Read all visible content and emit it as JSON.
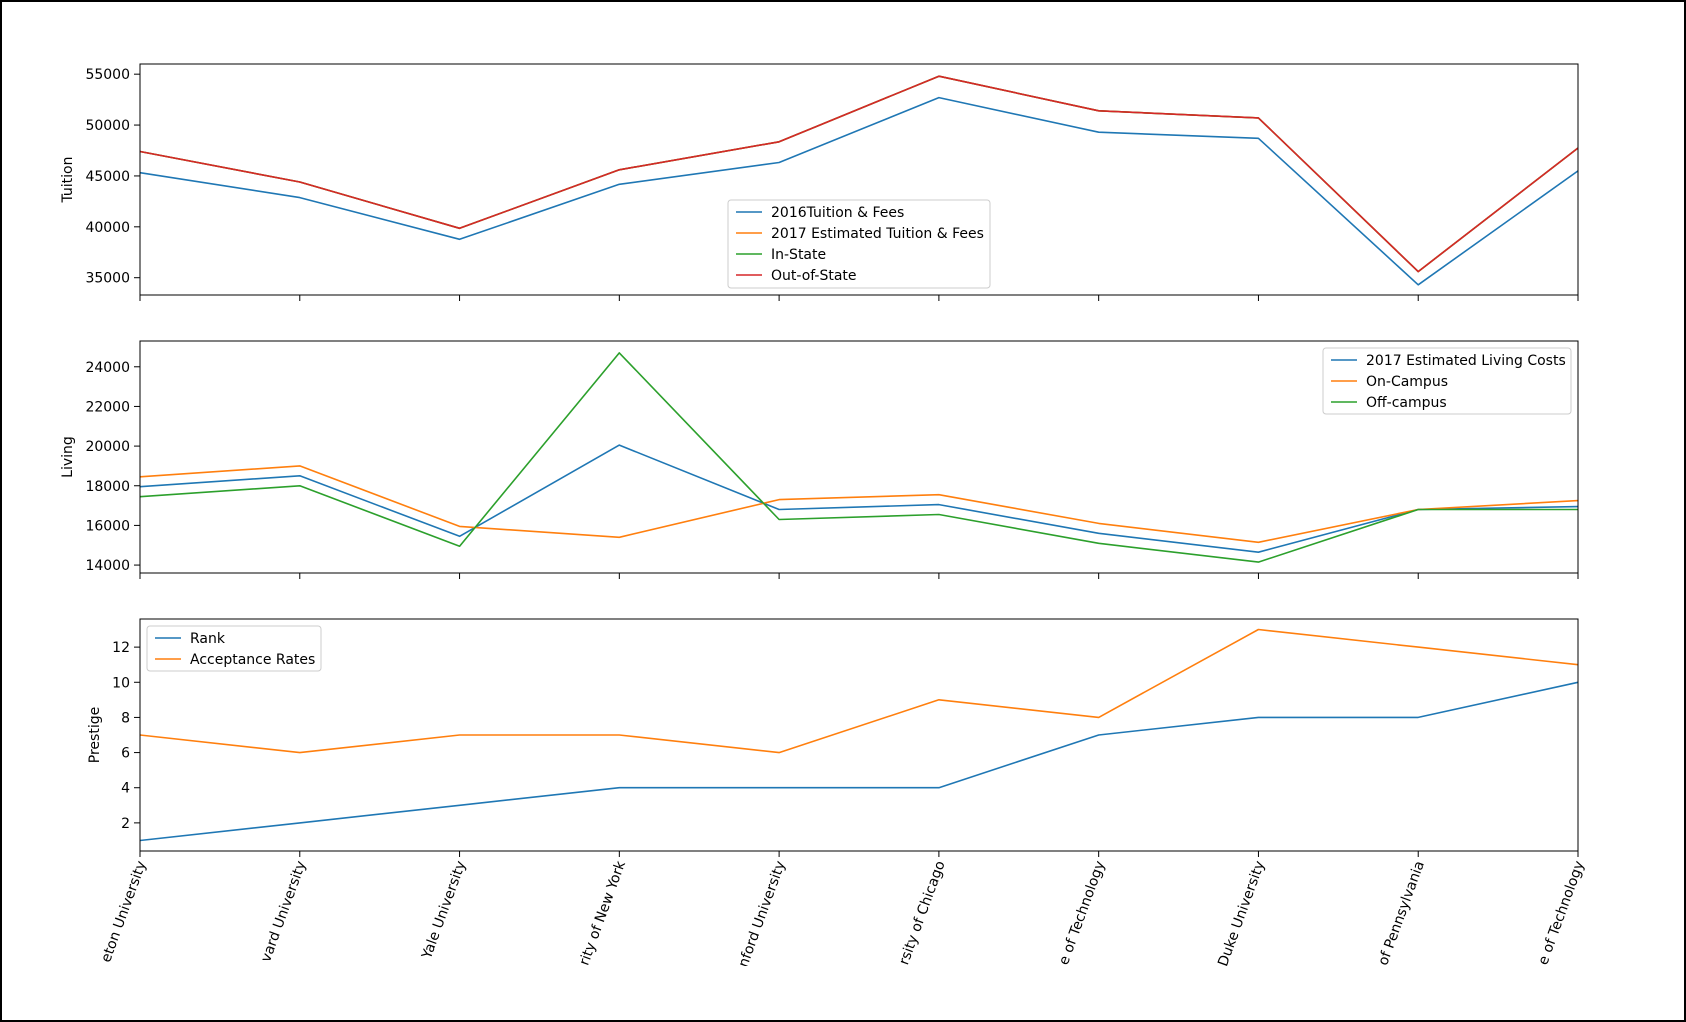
{
  "chart_data": [
    {
      "type": "line",
      "ylabel": "Tuition",
      "ylim": [
        33300,
        56000
      ],
      "yticks": [
        35000,
        40000,
        45000,
        50000,
        55000
      ],
      "legend": "center",
      "grid": false,
      "series": [
        {
          "name": "2016Tuition & Fees",
          "color": "#1f77b4",
          "values": [
            45320,
            42870,
            38770,
            44180,
            46320,
            52700,
            49300,
            48700,
            34300,
            45500
          ]
        },
        {
          "name": "2017 Estimated Tuition & Fees",
          "color": "#ff7f0e",
          "values": [
            47400,
            44400,
            39850,
            45600,
            48350,
            54800,
            51400,
            50700,
            35600,
            47750
          ]
        },
        {
          "name": "In-State",
          "color": "#2ca02c",
          "values": [
            47400,
            44400,
            39850,
            45600,
            48350,
            54800,
            51400,
            50700,
            35600,
            47750
          ]
        },
        {
          "name": "Out-of-State",
          "color": "#d62728",
          "values": [
            47400,
            44400,
            39850,
            45600,
            48350,
            54800,
            51400,
            50700,
            35600,
            47750
          ]
        }
      ]
    },
    {
      "type": "line",
      "ylabel": "Living",
      "ylim": [
        13600,
        25300
      ],
      "yticks": [
        14000,
        16000,
        18000,
        20000,
        22000,
        24000
      ],
      "legend": "top-right",
      "grid": false,
      "series": [
        {
          "name": "2017 Estimated Living Costs",
          "color": "#1f77b4",
          "values": [
            17950,
            18500,
            15450,
            20050,
            16800,
            17050,
            15600,
            14650,
            16800,
            16950
          ]
        },
        {
          "name": "On-Campus",
          "color": "#ff7f0e",
          "values": [
            18450,
            19000,
            15950,
            15400,
            17300,
            17550,
            16100,
            15150,
            16800,
            17250
          ]
        },
        {
          "name": "Off-campus",
          "color": "#2ca02c",
          "values": [
            17450,
            18000,
            14950,
            24700,
            16300,
            16550,
            15100,
            14150,
            16800,
            16800
          ]
        }
      ]
    },
    {
      "type": "line",
      "ylabel": "Prestige",
      "ylim": [
        0.4,
        13.6
      ],
      "yticks": [
        2,
        4,
        6,
        8,
        10,
        12
      ],
      "legend": "top-left",
      "grid": false,
      "series": [
        {
          "name": "Rank",
          "color": "#1f77b4",
          "values": [
            1,
            2,
            3,
            4,
            4,
            4,
            7,
            8,
            8,
            10
          ]
        },
        {
          "name": "Acceptance Rates",
          "color": "#ff7f0e",
          "values": [
            7,
            6,
            7,
            7,
            6,
            9,
            8,
            13,
            12,
            11
          ]
        }
      ]
    }
  ],
  "x_categories": [
    "eton University",
    "vard University",
    "Yale University",
    "rity of New York",
    "nford University",
    "rsity of Chicago",
    "e of Technology",
    "Duke University",
    "of Pennsylvania",
    "e of Technology"
  ]
}
